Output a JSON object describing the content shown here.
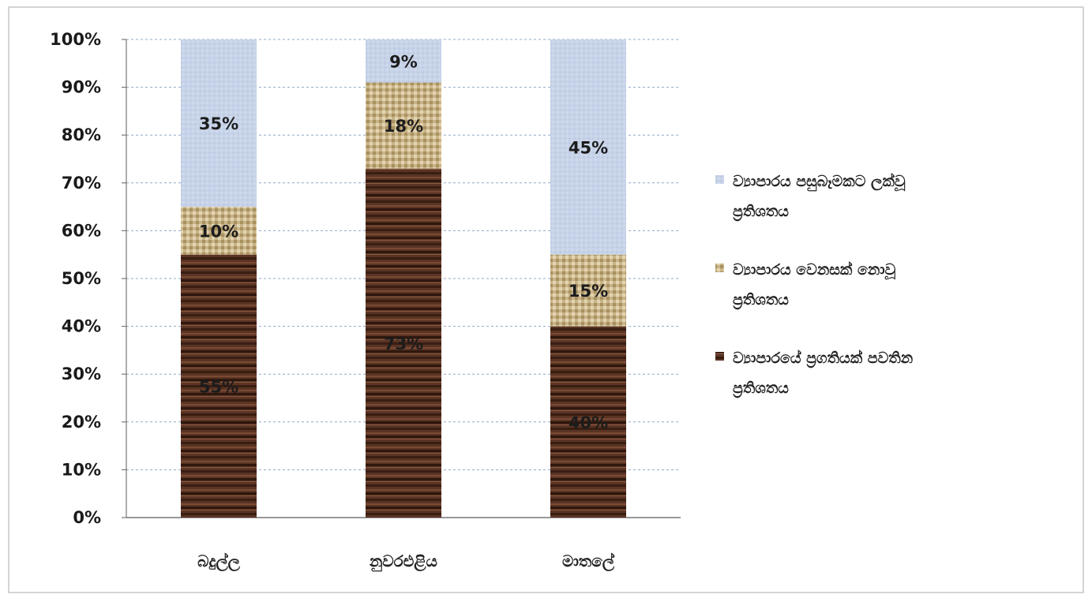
{
  "colors": {
    "gridline": "#8fa8c8",
    "axis": "#777777",
    "series_bottom": "#5a3424",
    "series_middle": "#c9b48a",
    "series_top": "#c7d3e8"
  },
  "chart_data": {
    "type": "bar",
    "stacked": true,
    "percent_stacked": true,
    "categories": [
      "බදුල්ල",
      "නුවරඑළිය",
      "මාතලේ"
    ],
    "series": [
      {
        "name": "ව්‍යාපාරයේ ප්‍රගතියක් පවතින ප්‍රතිශතය",
        "values": [
          55,
          73,
          40
        ]
      },
      {
        "name": "ව්‍යාපාරය වෙනසක් නොවූ ප්‍රතිශතය",
        "values": [
          10,
          18,
          15
        ]
      },
      {
        "name": "ව්‍යාපාරය පසුබෑමකට ලක්වූ ප්‍රතිශතය",
        "values": [
          35,
          9,
          45
        ]
      }
    ],
    "data_labels": [
      [
        "55%",
        "73%",
        "40%"
      ],
      [
        "10%",
        "18%",
        "15%"
      ],
      [
        "35%",
        "9%",
        "45%"
      ]
    ],
    "y_ticks": [
      "0%",
      "10%",
      "20%",
      "30%",
      "40%",
      "50%",
      "60%",
      "70%",
      "80%",
      "90%",
      "100%"
    ],
    "ylim": [
      0,
      100
    ],
    "grid": true,
    "legend_position": "right",
    "legend_order": "top-series-first"
  }
}
